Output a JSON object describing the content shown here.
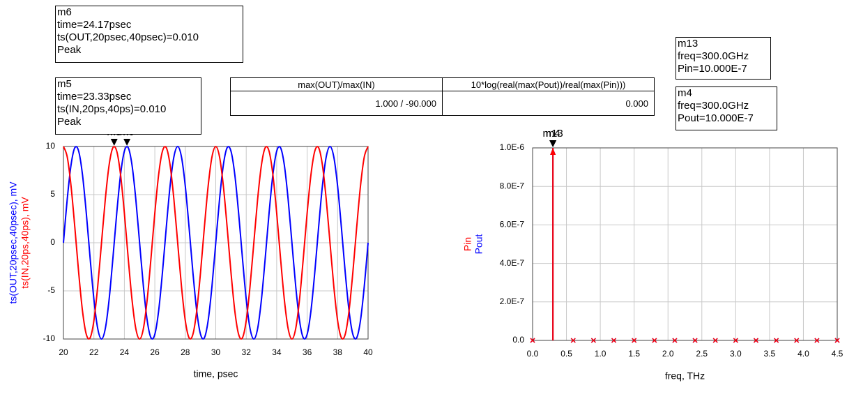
{
  "chart_data": [
    {
      "type": "line",
      "xlabel": "time, psec",
      "x": [
        20,
        20.25,
        20.5,
        20.75,
        21,
        21.25,
        21.5,
        21.75,
        22,
        22.25,
        22.5,
        22.75,
        23,
        23.25,
        23.5,
        23.75,
        24,
        24.25,
        24.5,
        24.75,
        25,
        25.25,
        25.5,
        25.75,
        26,
        26.25,
        26.5,
        26.75,
        27,
        27.25,
        27.5,
        27.75,
        28,
        28.25,
        28.5,
        28.75,
        29,
        29.25,
        29.5,
        29.75,
        30,
        30.25,
        30.5,
        30.75,
        31,
        31.25,
        31.5,
        31.75,
        32,
        32.25,
        32.5,
        32.75,
        33,
        33.25,
        33.5,
        33.75,
        34,
        34.25,
        34.5,
        34.75,
        35,
        35.25,
        35.5,
        35.75,
        36,
        36.25,
        36.5,
        36.75,
        37,
        37.25,
        37.5,
        37.75,
        38,
        38.25,
        38.5,
        38.75,
        39,
        39.25,
        39.5,
        39.75,
        40
      ],
      "series": [
        {
          "name": "ts(OUT,20psec,40psec), mV",
          "color": "#0000ff",
          "values": [
            0,
            4.54,
            8.09,
            9.88,
            9.51,
            7.07,
            3.09,
            -1.56,
            -5.88,
            -8.91,
            -10,
            -8.91,
            -5.88,
            -1.56,
            3.09,
            7.07,
            9.51,
            9.88,
            8.09,
            4.54,
            0,
            -4.54,
            -8.09,
            -9.88,
            -9.51,
            -7.07,
            -3.09,
            1.56,
            5.88,
            8.91,
            10,
            8.91,
            5.88,
            1.56,
            -3.09,
            -7.07,
            -9.51,
            -9.88,
            -8.09,
            -4.54,
            0,
            4.54,
            8.09,
            9.88,
            9.51,
            7.07,
            3.09,
            -1.56,
            -5.88,
            -8.91,
            -10,
            -8.91,
            -5.88,
            -1.56,
            3.09,
            7.07,
            9.51,
            9.88,
            8.09,
            4.54,
            0,
            -4.54,
            -8.09,
            -9.88,
            -9.51,
            -7.07,
            -3.09,
            1.56,
            5.88,
            8.91,
            10,
            8.91,
            5.88,
            1.56,
            -3.09,
            -7.07,
            -9.51,
            -9.88,
            -8.09,
            -4.54,
            0
          ]
        },
        {
          "name": "ts(IN,20ps,40ps), mV",
          "color": "#ff0000",
          "values": [
            10,
            8.91,
            5.88,
            1.56,
            -3.09,
            -7.07,
            -9.51,
            -9.88,
            -8.09,
            -4.54,
            0,
            4.54,
            8.09,
            9.88,
            9.51,
            7.07,
            3.09,
            -1.56,
            -5.88,
            -8.91,
            -10,
            -8.91,
            -5.88,
            -1.56,
            3.09,
            7.07,
            9.51,
            9.88,
            8.09,
            4.54,
            0,
            -4.54,
            -8.09,
            -9.88,
            -9.51,
            -7.07,
            -3.09,
            1.56,
            5.88,
            8.91,
            10,
            8.91,
            5.88,
            1.56,
            -3.09,
            -7.07,
            -9.51,
            -9.88,
            -8.09,
            -4.54,
            0,
            4.54,
            8.09,
            9.88,
            9.51,
            7.07,
            3.09,
            -1.56,
            -5.88,
            -8.91,
            -10,
            -8.91,
            -5.88,
            -1.56,
            3.09,
            7.07,
            9.51,
            9.88,
            8.09,
            4.54,
            0,
            -4.54,
            -8.09,
            -9.88,
            -9.51,
            -7.07,
            -3.09,
            1.56,
            5.88,
            8.91,
            10
          ]
        }
      ],
      "xlim": [
        20,
        40
      ],
      "xticks": [
        20,
        22,
        24,
        26,
        28,
        30,
        32,
        34,
        36,
        38,
        40
      ],
      "ylim": [
        -10,
        10
      ],
      "yticks": [
        -10,
        -5,
        0,
        5,
        10
      ],
      "grid": true,
      "markers": [
        {
          "name": "m5",
          "lines": [
            "time=23.33psec",
            "ts(IN,20ps,40ps)=0.010",
            "Peak"
          ],
          "x": 23.33,
          "y": 10
        },
        {
          "name": "m6",
          "lines": [
            "time=24.17psec",
            "ts(OUT,20psec,40psec)=0.010",
            "Peak"
          ],
          "x": 24.17,
          "y": 10
        }
      ]
    },
    {
      "type": "stem",
      "xlabel": "freq, THz",
      "x": [
        0,
        0.3,
        0.6,
        0.9,
        1.2,
        1.5,
        1.8,
        2.1,
        2.4,
        2.7,
        3.0,
        3.3,
        3.6,
        3.9,
        4.2,
        4.5
      ],
      "series": [
        {
          "name": "Pin",
          "color": "#ff0000",
          "values": [
            0,
            1e-06,
            0,
            0,
            0,
            0,
            0,
            0,
            0,
            0,
            0,
            0,
            0,
            0,
            0,
            0
          ]
        },
        {
          "name": "Pout",
          "color": "#0000ff",
          "values": [
            0,
            1e-06,
            0,
            0,
            0,
            0,
            0,
            0,
            0,
            0,
            0,
            0,
            0,
            0,
            0,
            0
          ]
        }
      ],
      "xlim": [
        0,
        4.5
      ],
      "xticks": [
        {
          "value": 0,
          "label": "0.0"
        },
        {
          "value": 0.5,
          "label": "0.5"
        },
        {
          "value": 1,
          "label": "1.0"
        },
        {
          "value": 1.5,
          "label": "1.5"
        },
        {
          "value": 2,
          "label": "2.0"
        },
        {
          "value": 2.5,
          "label": "2.5"
        },
        {
          "value": 3,
          "label": "3.0"
        },
        {
          "value": 3.5,
          "label": "3.5"
        },
        {
          "value": 4,
          "label": "4.0"
        },
        {
          "value": 4.5,
          "label": "4.5"
        }
      ],
      "ylim": [
        0,
        1e-06
      ],
      "yticks": [
        {
          "value": 0,
          "label": "0.0"
        },
        {
          "value": 2e-07,
          "label": "2.0E-7"
        },
        {
          "value": 4e-07,
          "label": "4.0E-7"
        },
        {
          "value": 6e-07,
          "label": "6.0E-7"
        },
        {
          "value": 8e-07,
          "label": "8.0E-7"
        },
        {
          "value": 1e-06,
          "label": "1.0E-6"
        }
      ],
      "grid": true,
      "markers": [
        {
          "name": "m13",
          "lines": [
            "freq=300.0GHz",
            "Pin=10.000E-7"
          ],
          "x": 0.3,
          "y": 1e-06
        },
        {
          "name": "m4",
          "lines": [
            "freq=300.0GHz",
            "Pout=10.000E-7"
          ],
          "x": 0.3,
          "y": 1e-06
        }
      ]
    }
  ],
  "table": {
    "header": [
      "max(OUT)/max(IN)",
      "10*log(real(max(Pout))/real(max(Pin)))"
    ],
    "rows": [
      [
        "1.000 / -90.000",
        "0.000"
      ]
    ]
  }
}
